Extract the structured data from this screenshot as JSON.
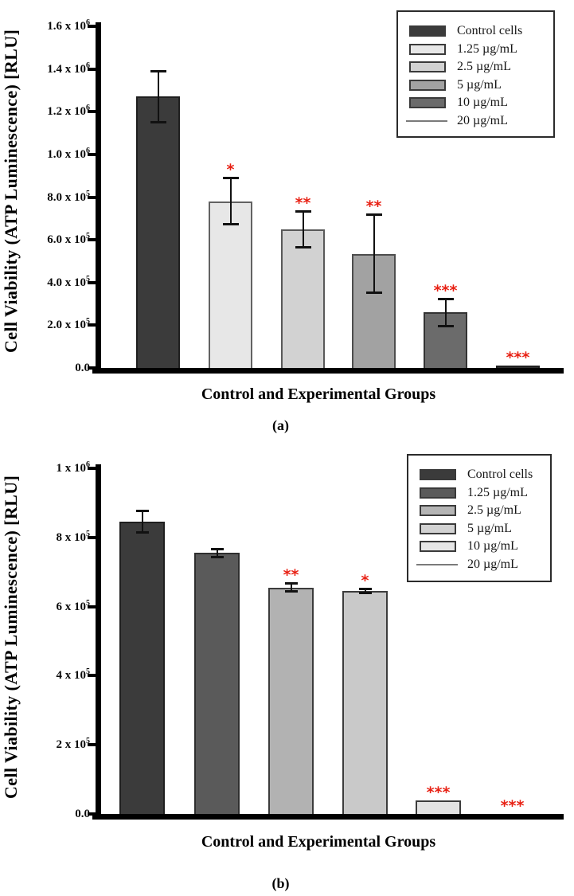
{
  "style": {
    "significance_color": "#e82114",
    "axis_color": "#000000",
    "background": "#ffffff"
  },
  "chart_data": [
    {
      "panel": "a",
      "type": "bar",
      "caption": "(a)",
      "xlabel": "Control and Experimental Groups",
      "ylabel": "Cell Viability (ATP Luminescence) [RLU]",
      "ylim": [
        0,
        1600000
      ],
      "grid": false,
      "legend_position": "upper right",
      "yticks": [
        {
          "value": 0,
          "label": "0.0"
        },
        {
          "value": 200000,
          "label": "2.0 x 10^5"
        },
        {
          "value": 400000,
          "label": "4.0 x 10^5"
        },
        {
          "value": 600000,
          "label": "6.0 x 10^5"
        },
        {
          "value": 800000,
          "label": "8.0 x 10^5"
        },
        {
          "value": 1000000,
          "label": "1.0 x 10^6"
        },
        {
          "value": 1200000,
          "label": "1.2 x 10^6"
        },
        {
          "value": 1400000,
          "label": "1.4 x 10^6"
        },
        {
          "value": 1600000,
          "label": "1.6 x 10^6"
        }
      ],
      "categories": [
        "Control cells",
        "1.25 µg/mL",
        "2.5 µg/mL",
        "5 µg/mL",
        "10 µg/mL",
        "20 µg/mL"
      ],
      "values": [
        1270000,
        780000,
        650000,
        535000,
        260000,
        12000
      ],
      "errors": [
        120000,
        110000,
        85000,
        185000,
        65000,
        0
      ],
      "significance": [
        "",
        "*",
        "**",
        "**",
        "***",
        "***"
      ],
      "bar_colors": [
        "#3b3b3b",
        "#e7e7e7",
        "#d2d2d2",
        "#a2a2a2",
        "#6b6b6b",
        "#2f2f2f"
      ],
      "bar_border_colors": [
        "#1f1f1f",
        "#626262",
        "#595959",
        "#4d4d4d",
        "#333333",
        "#1f1f1f"
      ],
      "legend": [
        {
          "label": "Control cells",
          "swatch": "box",
          "color": "#3b3b3b"
        },
        {
          "label": "1.25 µg/mL",
          "swatch": "box",
          "color": "#e7e7e7"
        },
        {
          "label": "2.5 µg/mL",
          "swatch": "box",
          "color": "#d2d2d2"
        },
        {
          "label": "5 µg/mL",
          "swatch": "box",
          "color": "#a2a2a2"
        },
        {
          "label": "10 µg/mL",
          "swatch": "box",
          "color": "#6b6b6b"
        },
        {
          "label": "20 µg/mL",
          "swatch": "line",
          "color": "#7a7a7a"
        }
      ]
    },
    {
      "panel": "b",
      "type": "bar",
      "caption": "(b)",
      "xlabel": "Control and Experimental Groups",
      "ylabel": "Cell Viability (ATP Luminescence) [RLU]",
      "ylim": [
        0,
        1000000
      ],
      "grid": false,
      "legend_position": "upper right",
      "yticks": [
        {
          "value": 0,
          "label": "0.0"
        },
        {
          "value": 200000,
          "label": "2 x 10^5"
        },
        {
          "value": 400000,
          "label": "4 x 10^5"
        },
        {
          "value": 600000,
          "label": "6 x 10^5"
        },
        {
          "value": 800000,
          "label": "8 x 10^5"
        },
        {
          "value": 1000000,
          "label": "1 x 10^6"
        }
      ],
      "categories": [
        "Control cells",
        "1.25 µg/mL",
        "2.5 µg/mL",
        "5 µg/mL",
        "10 µg/mL",
        "20 µg/mL"
      ],
      "values": [
        845000,
        755000,
        655000,
        645000,
        40000,
        0
      ],
      "errors": [
        32000,
        12000,
        13000,
        6000,
        0,
        0
      ],
      "significance": [
        "",
        "",
        "**",
        "*",
        "***",
        "***"
      ],
      "bar_colors": [
        "#3b3b3b",
        "#5a5a5a",
        "#b2b2b2",
        "#c9c9c9",
        "#e3e3e3",
        "#e3e3e3"
      ],
      "bar_border_colors": [
        "#1f1f1f",
        "#2e2e2e",
        "#3c3c3c",
        "#3c3c3c",
        "#3c3c3c",
        "#3c3c3c"
      ],
      "legend": [
        {
          "label": "Control cells",
          "swatch": "box",
          "color": "#3b3b3b"
        },
        {
          "label": "1.25 µg/mL",
          "swatch": "box",
          "color": "#5a5a5a"
        },
        {
          "label": "2.5 µg/mL",
          "swatch": "box",
          "color": "#b4b4b4"
        },
        {
          "label": "5 µg/mL",
          "swatch": "box",
          "color": "#d2d2d2"
        },
        {
          "label": "10 µg/mL",
          "swatch": "box",
          "color": "#e6e6e6"
        },
        {
          "label": "20 µg/mL",
          "swatch": "line",
          "color": "#7a7a7a"
        }
      ]
    }
  ]
}
